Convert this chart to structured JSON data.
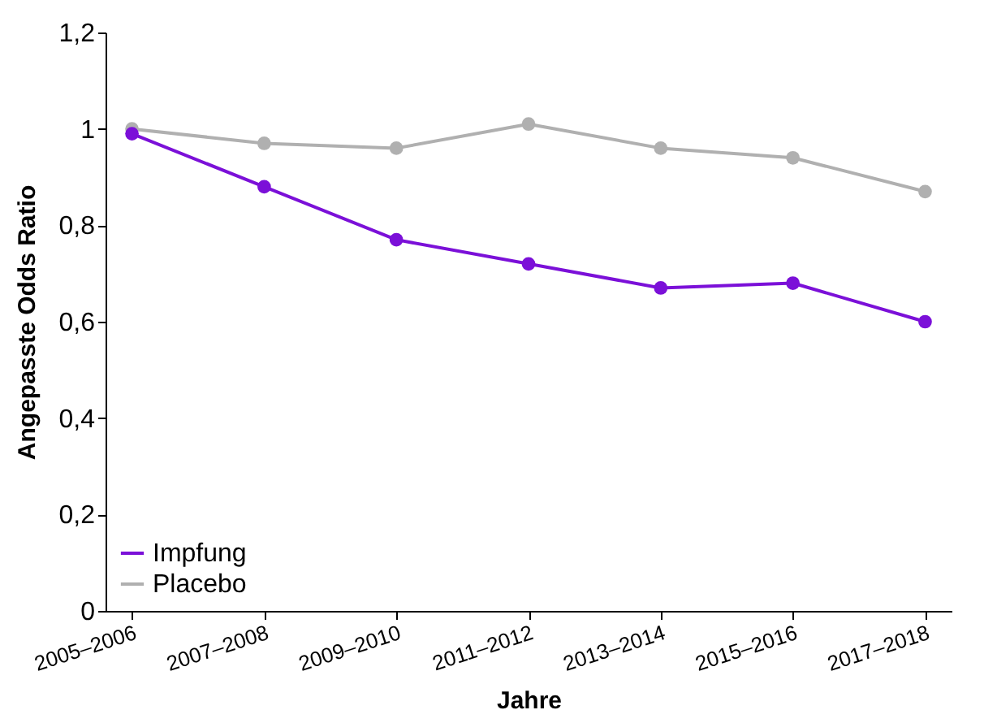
{
  "chart_data": {
    "type": "line",
    "xlabel": "Jahre",
    "ylabel": "Angepasste Odds Ratio",
    "categories": [
      "2005–2006",
      "2007–2008",
      "2009–2010",
      "2011–2012",
      "2013–2014",
      "2015–2016",
      "2017–2018"
    ],
    "series": [
      {
        "name": "Impfung",
        "color": "#7b10d8",
        "values": [
          0.99,
          0.88,
          0.77,
          0.72,
          0.67,
          0.68,
          0.6
        ]
      },
      {
        "name": "Placebo",
        "color": "#b0b0b0",
        "values": [
          1.0,
          0.97,
          0.96,
          1.01,
          0.96,
          0.94,
          0.87
        ]
      }
    ],
    "ylim": [
      0,
      1.2
    ],
    "yticks": [
      0,
      {
        "value": 0.2,
        "label": "0,2"
      },
      {
        "value": 0.4,
        "label": "0,4"
      },
      {
        "value": 0.6,
        "label": "0,6"
      },
      {
        "value": 0.8,
        "label": "0,8"
      },
      1,
      {
        "value": 1.2,
        "label": "1,2"
      }
    ],
    "grid": false,
    "legend": "bottom left",
    "marker": "circle",
    "line_style": "solid"
  }
}
